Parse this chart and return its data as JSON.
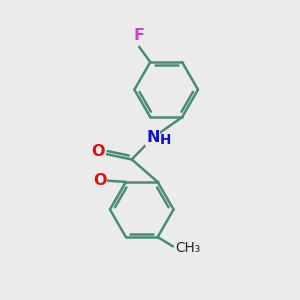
{
  "bg_color": "#ebebeb",
  "bond_color": "#4a8a7a",
  "bond_width": 1.8,
  "atom_colors": {
    "F": "#cc44cc",
    "O": "#dd1111",
    "N": "#1111cc"
  },
  "font_size": 11.5,
  "figsize": [
    3.0,
    3.0
  ],
  "dpi": 100
}
